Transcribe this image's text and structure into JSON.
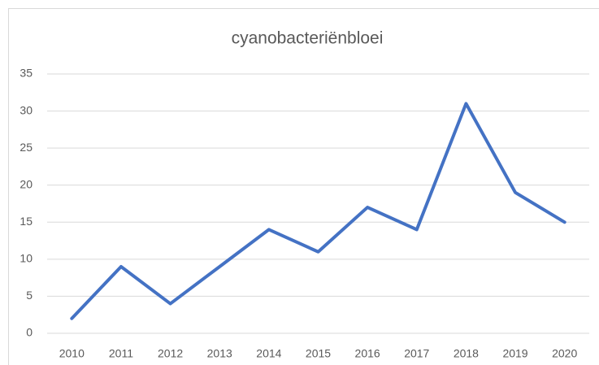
{
  "chart_data": {
    "type": "line",
    "title": "cyanobacteriënbloei",
    "categories": [
      "2010",
      "2011",
      "2012",
      "2013",
      "2014",
      "2015",
      "2016",
      "2017",
      "2018",
      "2019",
      "2020"
    ],
    "series": [
      {
        "color": "#4472c4",
        "values": [
          2,
          9,
          4,
          9,
          14,
          11,
          17,
          14,
          31,
          19,
          15
        ]
      }
    ],
    "ylim": [
      0,
      35
    ],
    "yticks": [
      0,
      5,
      10,
      15,
      20,
      25,
      30,
      35
    ],
    "grid": true
  }
}
